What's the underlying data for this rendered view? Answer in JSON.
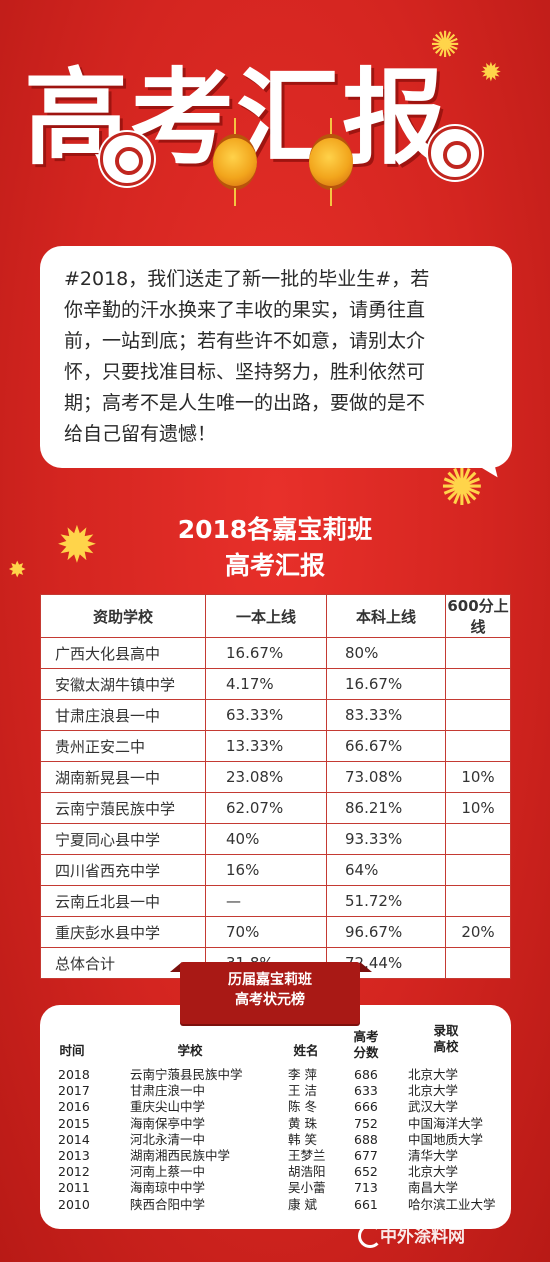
{
  "header": {
    "title": "高考汇报"
  },
  "intro": {
    "lines": [
      "#2018，我们送走了新一批的毕业生#，若",
      "你辛勤的汗水换来了丰收的果实，请勇往直",
      "前，一站到底；若有些许不如意，请别太介",
      "怀，只要找准目标、坚持努力，胜利依然可",
      "期；高考不是人生唯一的出路，要做的是不",
      "给自己留有遗憾！"
    ]
  },
  "report": {
    "title_line1": "2018各嘉宝莉班",
    "title_line2": "高考汇报",
    "columns": [
      "资助学校",
      "一本上线",
      "本科上线",
      "600分上线"
    ],
    "rows": [
      {
        "school": "广西大化县高中",
        "tier1": "16.67%",
        "bachelor": "80%",
        "over600": ""
      },
      {
        "school": "安徽太湖牛镇中学",
        "tier1": "4.17%",
        "bachelor": "16.67%",
        "over600": ""
      },
      {
        "school": "甘肃庄浪县一中",
        "tier1": "63.33%",
        "bachelor": "83.33%",
        "over600": ""
      },
      {
        "school": "贵州正安二中",
        "tier1": "13.33%",
        "bachelor": "66.67%",
        "over600": ""
      },
      {
        "school": "湖南新晃县一中",
        "tier1": "23.08%",
        "bachelor": "73.08%",
        "over600": "10%"
      },
      {
        "school": "云南宁蒗民族中学",
        "tier1": "62.07%",
        "bachelor": "86.21%",
        "over600": "10%"
      },
      {
        "school": "宁夏同心县中学",
        "tier1": "40%",
        "bachelor": "93.33%",
        "over600": ""
      },
      {
        "school": "四川省西充中学",
        "tier1": "16%",
        "bachelor": "64%",
        "over600": ""
      },
      {
        "school": "云南丘北县一中",
        "tier1": "—",
        "bachelor": "51.72%",
        "over600": ""
      },
      {
        "school": "重庆彭水县中学",
        "tier1": "70%",
        "bachelor": "96.67%",
        "over600": "20%"
      },
      {
        "school": "总体合计",
        "tier1": "31.8%",
        "bachelor": "72.44%",
        "over600": ""
      }
    ]
  },
  "history": {
    "ribbon_line1": "历届嘉宝莉班",
    "ribbon_line2": "高考状元榜",
    "headers": {
      "year": "时间",
      "school": "学校",
      "name": "姓名",
      "score_1": "高考",
      "score_2": "分数",
      "college_1": "录取",
      "college_2": "高校"
    },
    "rows": [
      {
        "year": "2018",
        "school": "云南宁蒗县民族中学",
        "name": "李 萍",
        "score": "686",
        "college": "北京大学"
      },
      {
        "year": "2017",
        "school": "甘肃庄浪一中",
        "name": "王 洁",
        "score": "633",
        "college": "北京大学"
      },
      {
        "year": "2016",
        "school": "重庆尖山中学",
        "name": "陈 冬",
        "score": "666",
        "college": "武汉大学"
      },
      {
        "year": "2015",
        "school": "海南保亭中学",
        "name": "黄 珠",
        "score": "752",
        "college": "中国海洋大学"
      },
      {
        "year": "2014",
        "school": "河北永清一中",
        "name": "韩 笑",
        "score": "688",
        "college": "中国地质大学"
      },
      {
        "year": "2013",
        "school": "湖南湘西民族中学",
        "name": "王梦兰",
        "score": "677",
        "college": "清华大学"
      },
      {
        "year": "2012",
        "school": "河南上蔡一中",
        "name": "胡浩阳",
        "score": "652",
        "college": "北京大学"
      },
      {
        "year": "2011",
        "school": "海南琼中中学",
        "name": "吴小蕾",
        "score": "713",
        "college": "南昌大学"
      },
      {
        "year": "2010",
        "school": "陕西合阳中学",
        "name": "康 斌",
        "score": "661",
        "college": "哈尔滨工业大学"
      }
    ]
  },
  "watermark": {
    "text": "中外涂料网"
  },
  "colors": {
    "background": "#d42520",
    "lantern": "#f2a51c",
    "firework": "#ffd44a",
    "table_border": "#c43a33"
  }
}
